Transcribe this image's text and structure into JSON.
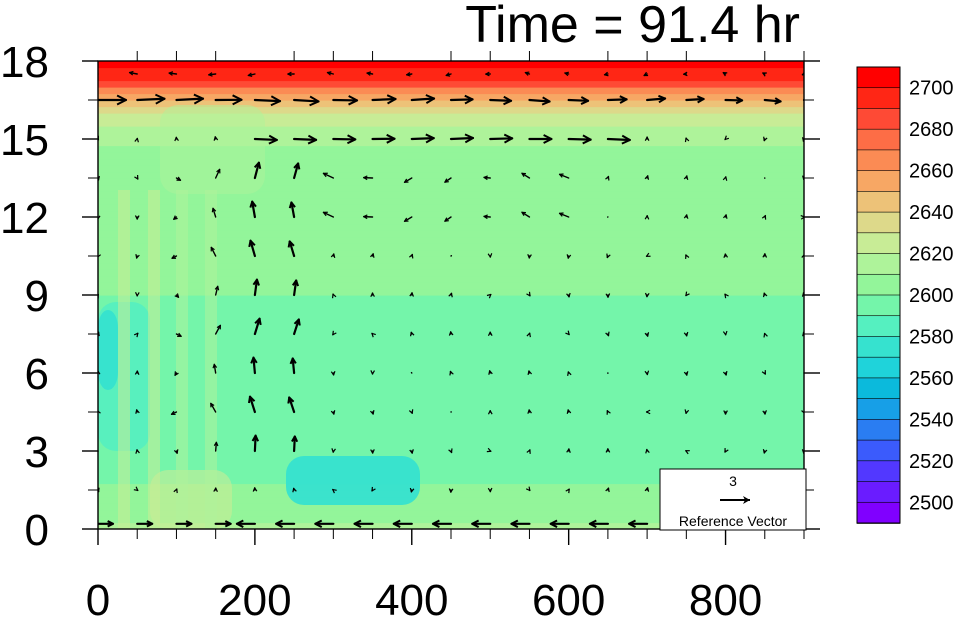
{
  "chart_data": {
    "type": "heatmap",
    "title": "Time = 91.4 hr",
    "xlabel": "",
    "ylabel": "",
    "xlim": [
      0,
      900
    ],
    "ylim": [
      0,
      18
    ],
    "x_ticks": [
      0,
      200,
      400,
      600,
      800
    ],
    "y_ticks": [
      0,
      3,
      6,
      9,
      12,
      15,
      18
    ],
    "x_tick_labels": [
      "0",
      "200",
      "400",
      "600",
      "800"
    ],
    "y_tick_labels": [
      "0",
      "3",
      "6",
      "9",
      "12",
      "15",
      "18"
    ],
    "grid": false,
    "colorbar": {
      "placement": "right",
      "min": 2490,
      "max": 2710,
      "step": 10,
      "labels": [
        2500,
        2520,
        2540,
        2560,
        2580,
        2600,
        2620,
        2640,
        2660,
        2680,
        2700
      ],
      "colors": [
        "#8000ff",
        "#6a1cff",
        "#5238ff",
        "#3b5bfc",
        "#2a7df2",
        "#179fe7",
        "#0bbadc",
        "#1fd3da",
        "#36e2cf",
        "#55f0c0",
        "#74f5aa",
        "#93f59a",
        "#aef39a",
        "#c8ec96",
        "#ddd98a",
        "#edc278",
        "#f7a764",
        "#fb8b54",
        "#fd6d46",
        "#fe4a35",
        "#ff2615",
        "#ff0000"
      ]
    },
    "field_profile": {
      "z": [
        0,
        1,
        2,
        3,
        4,
        5,
        6,
        7,
        8,
        9,
        10,
        11,
        12,
        13,
        14,
        15,
        15.5,
        16,
        16.5,
        17,
        17.5,
        18
      ],
      "values": [
        2612,
        2605,
        2598,
        2592,
        2590,
        2592,
        2595,
        2597,
        2599,
        2600,
        2601,
        2602,
        2603,
        2604,
        2606,
        2612,
        2618,
        2628,
        2650,
        2675,
        2695,
        2705
      ]
    },
    "reference_vector": {
      "magnitude": "3",
      "label": "Reference Vector"
    },
    "vectors": {
      "note_units": "u,v in plotted vector units",
      "x_positions": [
        0,
        50,
        100,
        150,
        200,
        250,
        300,
        350,
        400,
        450,
        500,
        550,
        600,
        650,
        700,
        750,
        800,
        850,
        900
      ],
      "z_positions": [
        0.2,
        1.5,
        3,
        4.5,
        6,
        7.5,
        9,
        10.5,
        12,
        13.5,
        15,
        16.5,
        17.5
      ]
    }
  }
}
